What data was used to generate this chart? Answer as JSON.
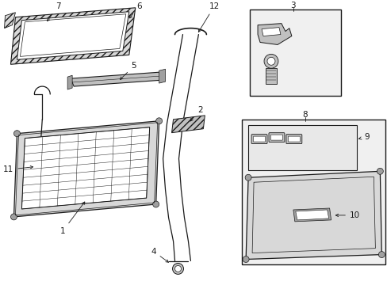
{
  "bg_color": "#ffffff",
  "line_color": "#1a1a1a",
  "shade_light": "#d8d8d8",
  "shade_mid": "#c0c0c0",
  "shade_dark": "#a0a0a0",
  "box_fill": "#f0f0f0",
  "inner_fill": "#e8e8e8"
}
